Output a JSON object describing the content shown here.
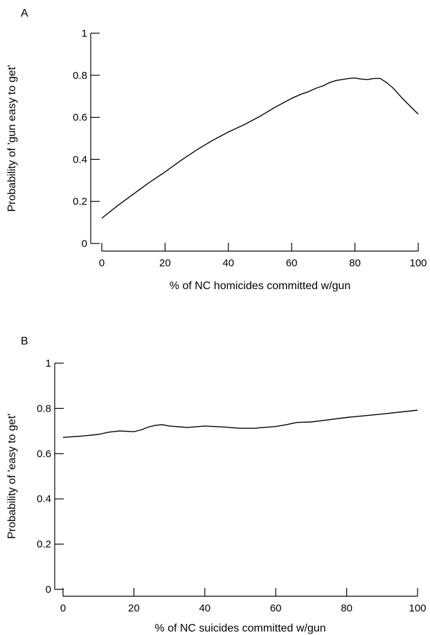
{
  "chart_data": [
    {
      "type": "line",
      "panel_label": "A",
      "title": "",
      "xlabel": "% of NC homicides committed w/gun",
      "ylabel": "Probability of 'gun easy to get'",
      "xlim": [
        0,
        100
      ],
      "ylim": [
        0,
        1
      ],
      "xticks": [
        0,
        20,
        40,
        60,
        80,
        100
      ],
      "yticks": [
        0,
        0.2,
        0.4,
        0.6,
        0.8,
        1
      ],
      "ytick_labels": [
        "0",
        "0.2",
        "0.4",
        "0.6",
        "0.8",
        "1"
      ],
      "grid": false,
      "series": [
        {
          "x": [
            0,
            5,
            10,
            15,
            20,
            25,
            30,
            35,
            40,
            45,
            50,
            55,
            60,
            63,
            65,
            68,
            70,
            72,
            74,
            76,
            78,
            80,
            82,
            84,
            86,
            88,
            90,
            92,
            95,
            100
          ],
          "y": [
            0.12,
            0.18,
            0.235,
            0.29,
            0.34,
            0.395,
            0.445,
            0.49,
            0.53,
            0.565,
            0.605,
            0.65,
            0.69,
            0.71,
            0.72,
            0.74,
            0.75,
            0.765,
            0.775,
            0.78,
            0.785,
            0.787,
            0.782,
            0.78,
            0.785,
            0.785,
            0.765,
            0.74,
            0.69,
            0.615
          ]
        }
      ]
    },
    {
      "type": "line",
      "panel_label": "B",
      "title": "",
      "xlabel": "% of NC suicides committed w/gun",
      "ylabel": "Probability of 'easy to get'",
      "xlim": [
        0,
        100
      ],
      "ylim": [
        0,
        1
      ],
      "xticks": [
        0,
        20,
        40,
        60,
        80,
        100
      ],
      "yticks": [
        0,
        0.2,
        0.4,
        0.6,
        0.8,
        1
      ],
      "ytick_labels": [
        "0",
        "0.2",
        "0.4",
        "0.6",
        "0.8",
        "1"
      ],
      "grid": false,
      "series": [
        {
          "x": [
            0,
            5,
            10,
            13,
            16,
            20,
            22,
            24,
            26,
            28,
            30,
            35,
            40,
            45,
            50,
            54,
            56,
            60,
            63,
            66,
            70,
            75,
            80,
            90,
            100
          ],
          "y": [
            0.672,
            0.677,
            0.685,
            0.695,
            0.7,
            0.697,
            0.705,
            0.717,
            0.725,
            0.728,
            0.722,
            0.716,
            0.722,
            0.718,
            0.712,
            0.712,
            0.715,
            0.72,
            0.728,
            0.738,
            0.74,
            0.75,
            0.76,
            0.775,
            0.792
          ]
        }
      ]
    }
  ]
}
